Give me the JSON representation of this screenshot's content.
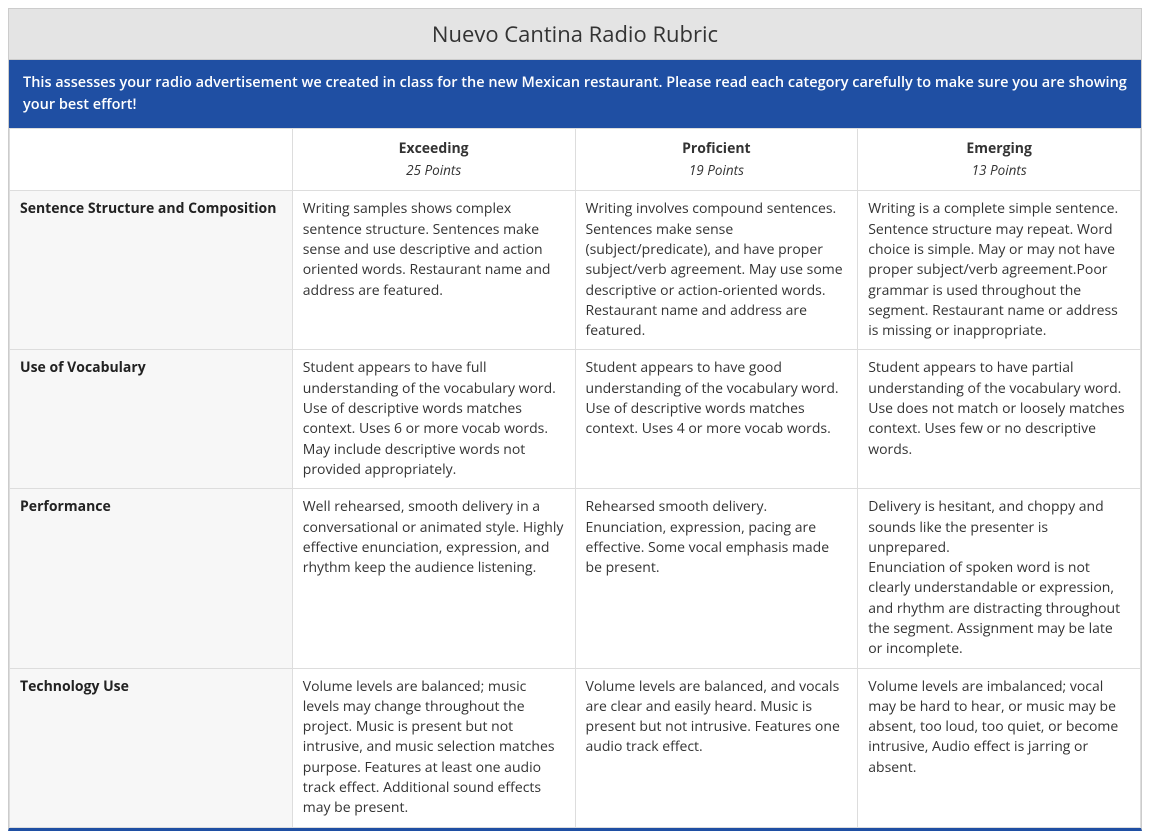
{
  "title": "Nuevo Cantina Radio Rubric",
  "description": "This assesses your radio advertisement we created in class for the new Mexican restaurant. Please read each category carefully to make sure you are showing your best effort!",
  "colors": {
    "title_bg": "#e4e4e4",
    "description_bg": "#1f4fa3",
    "description_text": "#ffffff",
    "border": "#cccccc",
    "cell_border": "#dddddd",
    "row_label_bg": "#f7f7f7",
    "text": "#333333",
    "bottom_border": "#1f4fa3"
  },
  "columns": [
    {
      "label": "Exceeding",
      "points": "25 Points"
    },
    {
      "label": "Proficient",
      "points": "19 Points"
    },
    {
      "label": "Emerging",
      "points": "13 Points"
    }
  ],
  "rows": [
    {
      "label": "Sentence Structure and Composition",
      "cells": [
        "Writing samples shows complex sentence structure. Sentences make sense and use descriptive and action oriented words. Restaurant name and address are featured.",
        "Writing involves compound sentences. Sentences make sense (subject/predicate), and have proper subject/verb agreement. May use some descriptive or action-oriented words. Restaurant name and address are featured.",
        "Writing is a complete simple sentence. Sentence structure may repeat. Word choice is simple. May or may not have proper subject/verb agreement.Poor grammar is used throughout the segment. Restaurant name or address is missing or inappropriate."
      ]
    },
    {
      "label": "Use of Vocabulary",
      "cells": [
        "Student appears to have full understanding of the vocabulary word. Use of descriptive words matches context. Uses 6 or more vocab words. May include descriptive words not provided appropriately.",
        "Student appears to have good understanding of the vocabulary word. Use of descriptive words matches context. Uses 4 or more vocab words.",
        "Student appears to have partial understanding of the vocabulary word. Use does not match or loosely matches context. Uses few or no descriptive words."
      ]
    },
    {
      "label": "Performance",
      "cells": [
        "Well rehearsed, smooth delivery in a conversational or animated style. Highly effective enunciation, expression, and rhythm keep the audience listening.",
        "Rehearsed smooth delivery. Enunciation, expression, pacing are effective. Some vocal emphasis made be present.",
        "Delivery is hesitant, and choppy and sounds like the presenter is unprepared.\nEnunciation of spoken word is not clearly understandable or expression, and rhythm are distracting throughout the segment. Assignment may be late or incomplete."
      ]
    },
    {
      "label": "Technology Use",
      "cells": [
        "Volume levels are balanced; music levels may change throughout the project. Music is present but not intrusive, and music selection matches purpose. Features at least one audio track effect. Additional sound effects may be present.",
        "Volume levels are balanced, and vocals are clear and easily heard. Music is present but not intrusive. Features one audio track effect.",
        "Volume levels are imbalanced; vocal may be hard to hear, or music may be absent, too loud, too quiet, or become intrusive, Audio effect is jarring or absent."
      ]
    }
  ]
}
